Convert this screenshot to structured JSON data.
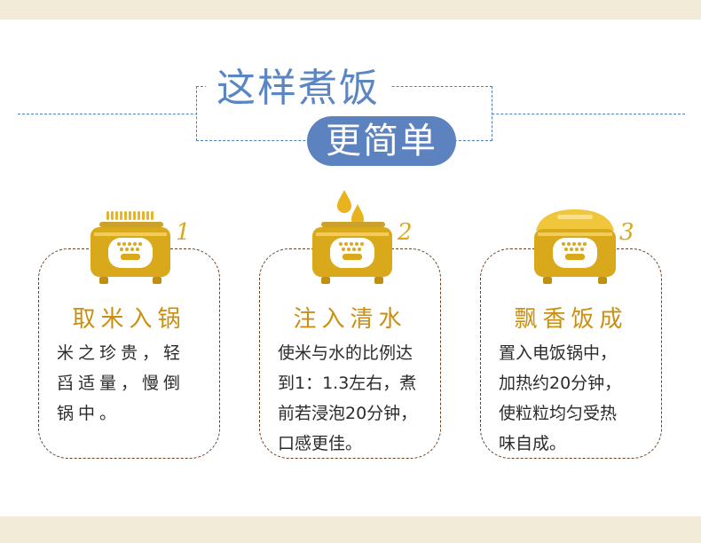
{
  "title": {
    "main": "这样煮饭",
    "sub": "更简单"
  },
  "colors": {
    "accent_blue": "#5c83bf",
    "gold": "#d9a81b",
    "title_gold": "#c98f10",
    "card_border": "#6a3f22",
    "band": "#f1ebd7"
  },
  "steps": [
    {
      "number": "1",
      "icon": "rice-cooker-with-rice-icon",
      "title": "取米入锅",
      "lines": [
        "米之珍贵，轻",
        "舀适量，慢倒",
        "锅中。"
      ]
    },
    {
      "number": "2",
      "icon": "rice-cooker-with-water-drops-icon",
      "title": "注入清水",
      "lines": [
        "使米与水的比例达",
        "到1：1.3左右，煮",
        "前若浸泡20分钟，",
        "口感更佳。"
      ]
    },
    {
      "number": "3",
      "icon": "rice-cooker-closed-icon",
      "title": "飘香饭成",
      "lines": [
        "置入电饭锅中，",
        "加热约20分钟，",
        "使粒粒均匀受热",
        "味自成。"
      ]
    }
  ]
}
